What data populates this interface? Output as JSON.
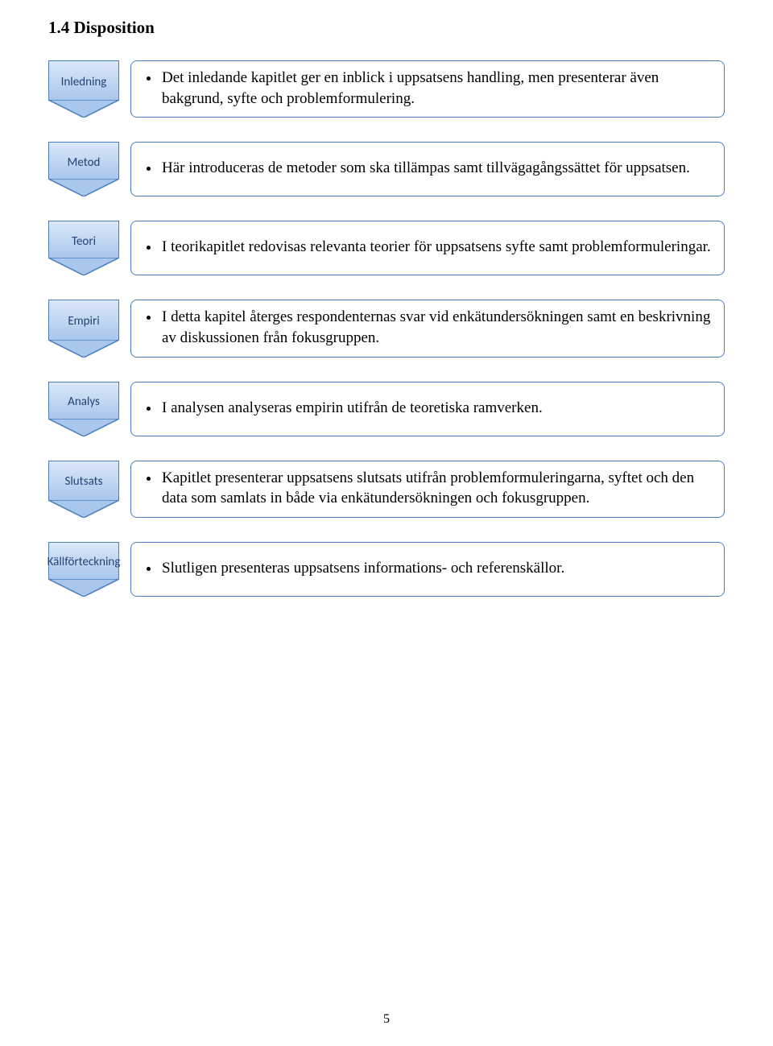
{
  "heading": "1.4 Disposition",
  "page_number": "5",
  "colors": {
    "chev_border": "#4a7ebb",
    "chev_fill_top": "#dbe8f8",
    "chev_fill_bottom": "#a9c6ec",
    "chev_text": "#234277",
    "box_border": "#4a7ebb",
    "box_bg": "#ffffff",
    "text": "#000000"
  },
  "label_font_size": 15,
  "content_font_size": 19,
  "sections": [
    {
      "label": "Inledning",
      "text": "Det inledande kapitlet ger en inblick i uppsatsens handling, men presenterar även bakgrund, syfte och problemformulering."
    },
    {
      "label": "Metod",
      "text": "Här introduceras de metoder som ska tillämpas samt tillvägagångssättet för uppsatsen."
    },
    {
      "label": "Teori",
      "text": "I teorikapitlet redovisas relevanta teorier för uppsatsens syfte samt problemformuleringar."
    },
    {
      "label": "Empiri",
      "text": "I detta kapitel återges respondenternas svar vid enkätundersökningen samt en beskrivning av diskussionen från fokusgruppen."
    },
    {
      "label": "Analys",
      "text": "I analysen analyseras empirin utifrån de teoretiska ramverken."
    },
    {
      "label": "Slutsats",
      "text": "Kapitlet presenterar uppsatsens slutsats utifrån problemformuleringarna, syftet och den data som samlats in både via enkätundersökningen och fokusgruppen."
    },
    {
      "label": "Källförteckning",
      "text": "Slutligen presenteras uppsatsens informations- och referenskällor."
    }
  ]
}
